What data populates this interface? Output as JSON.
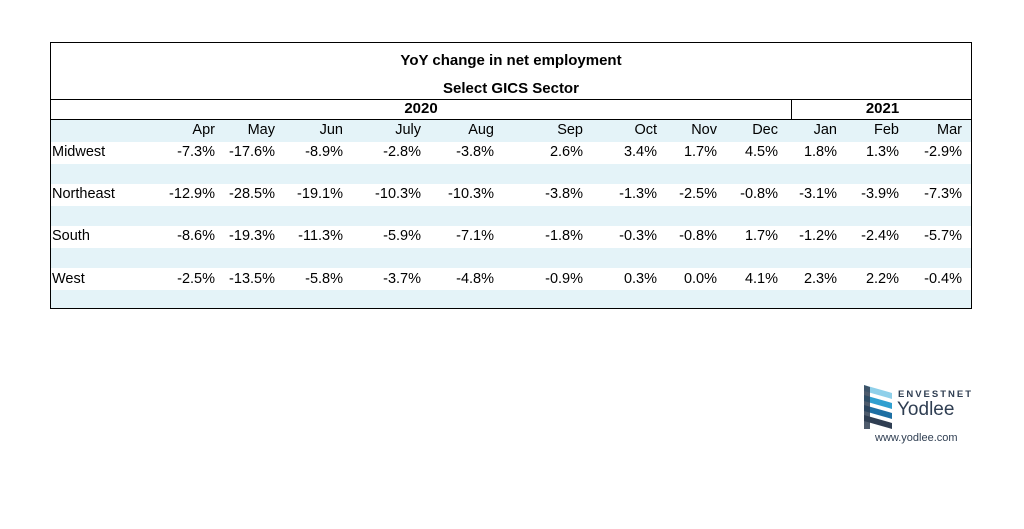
{
  "chart_data": {
    "type": "table",
    "title": "YoY change in net employment",
    "subtitle": "Select GICS Sector",
    "years": [
      {
        "label": "2020",
        "span": 9
      },
      {
        "label": "2021",
        "span": 3
      }
    ],
    "columns": [
      "Apr",
      "May",
      "Jun",
      "July",
      "Aug",
      "Sep",
      "Oct",
      "Nov",
      "Dec",
      "Jan",
      "Feb",
      "Mar"
    ],
    "rows": [
      {
        "label": "Midwest",
        "values": [
          "-7.3%",
          "-17.6%",
          "-8.9%",
          "-2.8%",
          "-3.8%",
          "2.6%",
          "3.4%",
          "1.7%",
          "4.5%",
          "1.8%",
          "1.3%",
          "-2.9%"
        ]
      },
      {
        "label": "Northeast",
        "values": [
          "-12.9%",
          "-28.5%",
          "-19.1%",
          "-10.3%",
          "-10.3%",
          "-3.8%",
          "-1.3%",
          "-2.5%",
          "-0.8%",
          "-3.1%",
          "-3.9%",
          "-7.3%"
        ]
      },
      {
        "label": "South",
        "values": [
          "-8.6%",
          "-19.3%",
          "-11.3%",
          "-5.9%",
          "-7.1%",
          "-1.8%",
          "-0.3%",
          "-0.8%",
          "1.7%",
          "-1.2%",
          "-2.4%",
          "-5.7%"
        ]
      },
      {
        "label": "West",
        "values": [
          "-2.5%",
          "-13.5%",
          "-5.8%",
          "-3.7%",
          "-4.8%",
          "-0.9%",
          "0.3%",
          "0.0%",
          "4.1%",
          "2.3%",
          "2.2%",
          "-0.4%"
        ]
      }
    ],
    "band_color": "#e4f3f8"
  },
  "logo": {
    "brand_top": "ENVESTNET",
    "brand_main": "Yodlee",
    "url": "www.yodlee.com"
  }
}
